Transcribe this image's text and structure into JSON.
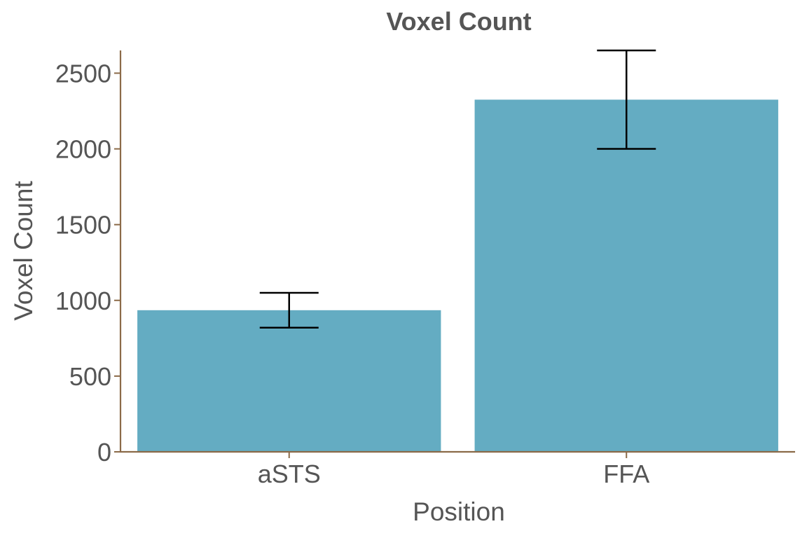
{
  "colors": {
    "bar": "#64acc2",
    "axis": "#8b6a48",
    "text": "#555555",
    "error_bar": "#000000"
  },
  "chart_data": {
    "type": "bar",
    "title": "Voxel Count",
    "xlabel": "Position",
    "ylabel": "Voxel Count",
    "categories": [
      "aSTS",
      "FFA"
    ],
    "values": [
      935,
      2325
    ],
    "error_bars": [
      {
        "lower": 820,
        "upper": 1050
      },
      {
        "lower": 2000,
        "upper": 2650
      }
    ],
    "ylim": [
      0,
      2650
    ],
    "yticks": [
      0,
      500,
      1000,
      1500,
      2000,
      2500
    ],
    "grid": false,
    "legend": "none"
  }
}
